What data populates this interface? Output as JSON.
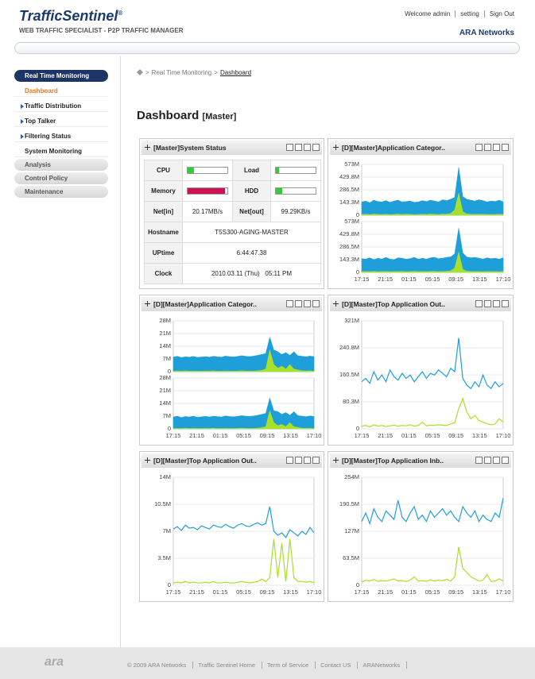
{
  "header": {
    "brand": "TrafficSentinel",
    "mark": "®",
    "tagline": "WEB TRAFFIC SPECIALIST - P2P TRAFFIC MANAGER",
    "links": [
      "Welcome admin",
      "setting",
      "Sign Out"
    ],
    "company": "ARA Networks"
  },
  "nav": [
    "Real Time Monitoring",
    "Dashboard",
    "Traffic Distribution",
    "Top Talker",
    "Filtering Status",
    "System Monitoring",
    "Analysis",
    "Control Policy",
    "Maintenance"
  ],
  "breadcrumb": {
    "sep": ">",
    "items": [
      "Real Time Monitoring",
      "Dashboard"
    ]
  },
  "page": {
    "title": "Dashboard",
    "tag": "[Master]"
  },
  "status": {
    "title": "[Master]System Status",
    "meters": [
      {
        "label": "CPU",
        "value": 15,
        "color": "#33cc33"
      },
      {
        "label": "Load",
        "value": 8,
        "color": "#33cc33"
      },
      {
        "label": "Memory",
        "value": 93,
        "color": "#cc1155"
      },
      {
        "label": "HDD",
        "value": 16,
        "color": "#33cc33"
      }
    ],
    "net": [
      {
        "label": "Net[in]",
        "value": "20.17MB/s"
      },
      {
        "label": "Net[out]",
        "value": "99.29KB/s"
      }
    ],
    "rows": [
      {
        "label": "Hostname",
        "value": "T5S300-AGING-MASTER"
      },
      {
        "label": "UPtime",
        "value": "6:44:47.38"
      },
      {
        "label": "Clock",
        "value": "2010.03.11 (Thu)   05:11 PM"
      }
    ]
  },
  "panels": [
    {
      "title": "[D][Master]Application Categor..",
      "xticks": [
        "17:15",
        "21:15",
        "01:15",
        "05:15",
        "09:15",
        "13:15",
        "17:10"
      ],
      "charts": [
        {
          "type": "area",
          "ylim": [
            0,
            573
          ],
          "yticks": [
            0,
            {
              "value": 143.3,
              "label": "143.3M"
            },
            {
              "value": 286.5,
              "label": "286.5M"
            },
            {
              "value": 429.8,
              "label": "429.8M"
            },
            {
              "value": 573,
              "label": "573M"
            }
          ],
          "series": [
            {
              "color": "#1f9fd9",
              "values": [
                150,
                160,
                140,
                170,
                155,
                150,
                165,
                145,
                160,
                170,
                150,
                155,
                160,
                145,
                150,
                165,
                155,
                170,
                160,
                150,
                175,
                165,
                180,
                200,
                540,
                210,
                180,
                170,
                160,
                175,
                165,
                150,
                160,
                155,
                170,
                150
              ]
            },
            {
              "color": "#a8e02a",
              "values": [
                10,
                12,
                8,
                15,
                10,
                9,
                11,
                8,
                10,
                14,
                9,
                12,
                10,
                8,
                9,
                12,
                10,
                15,
                11,
                9,
                14,
                12,
                20,
                60,
                250,
                40,
                15,
                12,
                10,
                12,
                11,
                9,
                10,
                9,
                12,
                10
              ]
            }
          ]
        },
        {
          "type": "area",
          "ylim": [
            0,
            573
          ],
          "yticks": [
            0,
            {
              "value": 143.3,
              "label": "143.3M"
            },
            {
              "value": 286.5,
              "label": "286.5M"
            },
            {
              "value": 429.8,
              "label": "429.8M"
            },
            {
              "value": 573,
              "label": "573M"
            }
          ],
          "series": [
            {
              "color": "#1f9fd9",
              "values": [
                155,
                150,
                165,
                145,
                160,
                150,
                170,
                150,
                145,
                165,
                160,
                150,
                155,
                170,
                150,
                160,
                150,
                165,
                170,
                155,
                160,
                170,
                175,
                210,
                500,
                220,
                175,
                165,
                170,
                160,
                150,
                165,
                155,
                160,
                150,
                165
              ]
            },
            {
              "color": "#a8e02a",
              "values": [
                9,
                11,
                10,
                13,
                9,
                10,
                12,
                9,
                11,
                10,
                12,
                9,
                10,
                13,
                9,
                11,
                10,
                12,
                13,
                10,
                11,
                13,
                18,
                50,
                230,
                35,
                14,
                11,
                12,
                10,
                9,
                11,
                10,
                11,
                9,
                12
              ]
            }
          ]
        }
      ]
    },
    {
      "title": "[D][Master]Application Categor..",
      "xticks": [
        "17:15",
        "21:15",
        "01:15",
        "05:15",
        "09:15",
        "13:15",
        "17:10"
      ],
      "charts": [
        {
          "type": "area",
          "ylim": [
            0,
            28
          ],
          "yticks": [
            0,
            {
              "value": 7,
              "label": "7M"
            },
            {
              "value": 14,
              "label": "14M"
            },
            {
              "value": 21,
              "label": "21M"
            },
            {
              "value": 28,
              "label": "28M"
            }
          ],
          "series": [
            {
              "color": "#1f9fd9",
              "values": [
                8,
                8.5,
                7.8,
                8.2,
                8,
                8.4,
                7.9,
                8.1,
                8.3,
                8,
                8.5,
                8.2,
                8,
                8.6,
                8.3,
                8.1,
                8.4,
                8.8,
                8.5,
                8.3,
                8.6,
                9,
                9.5,
                10,
                19,
                12,
                11,
                9.5,
                10.5,
                9,
                11,
                8.8,
                8.5,
                8.2,
                8.6,
                8.3
              ]
            },
            {
              "color": "#a8e02a",
              "values": [
                0.3,
                0.4,
                0.3,
                0.5,
                0.3,
                0.4,
                0.3,
                0.3,
                0.4,
                0.3,
                0.5,
                0.3,
                0.3,
                0.4,
                0.3,
                0.3,
                0.4,
                0.5,
                0.4,
                0.3,
                0.4,
                0.5,
                0.8,
                1.5,
                12,
                4,
                2,
                3,
                1.5,
                4,
                1.5,
                1,
                0.5,
                0.4,
                0.5,
                0.3
              ]
            }
          ]
        },
        {
          "type": "area",
          "ylim": [
            0,
            28
          ],
          "yticks": [
            0,
            {
              "value": 7,
              "label": "7M"
            },
            {
              "value": 14,
              "label": "14M"
            },
            {
              "value": 21,
              "label": "21M"
            },
            {
              "value": 28,
              "label": "28M"
            }
          ],
          "series": [
            {
              "color": "#1f9fd9",
              "values": [
                6.5,
                7,
                6.2,
                6.8,
                6.5,
                7,
                6.3,
                6.6,
                6.9,
                6.5,
                7,
                6.7,
                6.5,
                7.1,
                6.8,
                6.6,
                6.9,
                7.3,
                7,
                6.8,
                7.1,
                7.5,
                8,
                8.5,
                17,
                10,
                9.5,
                8,
                9,
                7.5,
                9.5,
                7.3,
                7,
                6.7,
                7.1,
                6.8
              ]
            },
            {
              "color": "#a8e02a",
              "values": [
                0.2,
                0.3,
                0.2,
                0.4,
                0.2,
                0.3,
                0.2,
                0.2,
                0.3,
                0.2,
                0.4,
                0.2,
                0.2,
                0.3,
                0.2,
                0.2,
                0.3,
                0.4,
                0.3,
                0.2,
                0.3,
                0.4,
                0.7,
                1.2,
                10,
                3.5,
                1.8,
                2.5,
                1.2,
                3.5,
                1.2,
                0.8,
                0.4,
                0.3,
                0.4,
                0.2
              ]
            }
          ]
        }
      ]
    },
    {
      "title": "[D][Master]Top Application Out..",
      "xticks": [
        "17:15",
        "21:15",
        "01:15",
        "05:15",
        "09:15",
        "13:15",
        "17:10"
      ],
      "charts": [
        {
          "type": "line",
          "ylim": [
            0,
            321
          ],
          "yticks": [
            0,
            {
              "value": 80.3,
              "label": "80.3M"
            },
            {
              "value": 160.5,
              "label": "160.5M"
            },
            {
              "value": 240.8,
              "label": "240.8M"
            },
            {
              "value": 321,
              "label": "321M"
            }
          ],
          "series": [
            {
              "color": "#1f9fd9",
              "values": [
                140,
                150,
                135,
                170,
                145,
                160,
                140,
                175,
                155,
                145,
                165,
                150,
                160,
                140,
                155,
                170,
                150,
                165,
                160,
                175,
                165,
                155,
                180,
                170,
                270,
                150,
                130,
                120,
                140,
                125,
                160,
                130,
                120,
                140,
                125,
                135
              ]
            },
            {
              "color": "#a8e02a",
              "values": [
                8,
                10,
                6,
                12,
                8,
                10,
                7,
                9,
                11,
                8,
                10,
                9,
                12,
                8,
                10,
                20,
                9,
                11,
                10,
                12,
                11,
                10,
                15,
                18,
                60,
                90,
                50,
                30,
                40,
                25,
                20,
                15,
                12,
                14,
                30,
                20
              ]
            }
          ]
        }
      ]
    },
    {
      "title": "[D][Master]Top Application Out..",
      "xticks": [
        "17:15",
        "21:15",
        "01:15",
        "05:15",
        "09:15",
        "13:15",
        "17:10"
      ],
      "charts": [
        {
          "type": "line",
          "ylim": [
            0,
            14
          ],
          "yticks": [
            0,
            {
              "value": 3.5,
              "label": "3.5M"
            },
            {
              "value": 7,
              "label": "7M"
            },
            {
              "value": 10.5,
              "label": "10.5M"
            },
            {
              "value": 14,
              "label": "14M"
            }
          ],
          "series": [
            {
              "color": "#1f9fd9",
              "values": [
                7.3,
                7.6,
                7.1,
                7.8,
                7.4,
                7.5,
                7.2,
                7.7,
                7.5,
                7.3,
                7.8,
                7.6,
                7.5,
                7.9,
                7.6,
                7.4,
                7.8,
                8,
                7.7,
                7.6,
                7.9,
                8.1,
                7.8,
                8,
                10.2,
                7,
                6.5,
                6.8,
                6.2,
                7.2,
                6.8,
                6.4,
                7,
                6.6,
                7.5,
                6.8
              ]
            },
            {
              "color": "#a8e02a",
              "values": [
                0.3,
                0.4,
                0.3,
                0.5,
                0.3,
                0.4,
                0.3,
                0.3,
                0.4,
                0.3,
                0.5,
                0.3,
                0.3,
                0.4,
                0.3,
                0.3,
                0.4,
                0.5,
                0.4,
                0.3,
                0.4,
                0.5,
                0.8,
                0.5,
                1,
                6,
                1,
                5.5,
                0.5,
                6,
                1,
                0.5,
                0.5,
                0.4,
                0.5,
                0.3
              ]
            }
          ]
        }
      ]
    },
    {
      "title": "[D][Master]Top Application Inb..",
      "xticks": [
        "17:15",
        "21:15",
        "01:15",
        "05:15",
        "09:15",
        "13:15",
        "17:10"
      ],
      "charts": [
        {
          "type": "line",
          "ylim": [
            0,
            254
          ],
          "yticks": [
            0,
            {
              "value": 63.5,
              "label": "63.5M"
            },
            {
              "value": 127,
              "label": "127M"
            },
            {
              "value": 190.5,
              "label": "190.5M"
            },
            {
              "value": 254,
              "label": "254M"
            }
          ],
          "series": [
            {
              "color": "#1f9fd9",
              "values": [
                150,
                170,
                145,
                180,
                160,
                150,
                175,
                165,
                155,
                200,
                160,
                150,
                170,
                185,
                155,
                165,
                150,
                175,
                160,
                170,
                180,
                165,
                175,
                160,
                150,
                185,
                170,
                160,
                175,
                150,
                165,
                155,
                150,
                170,
                160,
                205
              ]
            },
            {
              "color": "#a8e02a",
              "values": [
                8,
                12,
                10,
                14,
                9,
                11,
                10,
                12,
                15,
                10,
                11,
                9,
                12,
                20,
                10,
                11,
                9,
                13,
                10,
                12,
                11,
                14,
                10,
                20,
                90,
                40,
                30,
                20,
                15,
                10,
                12,
                25,
                9,
                10,
                15,
                10
              ]
            }
          ]
        }
      ]
    }
  ],
  "footer": {
    "logo": "ara",
    "copyright": "© 2009 ARA Networks",
    "links": [
      "Traffic Sentinel Home",
      "Term of Service",
      "Contact US",
      "ARANetworks"
    ]
  }
}
